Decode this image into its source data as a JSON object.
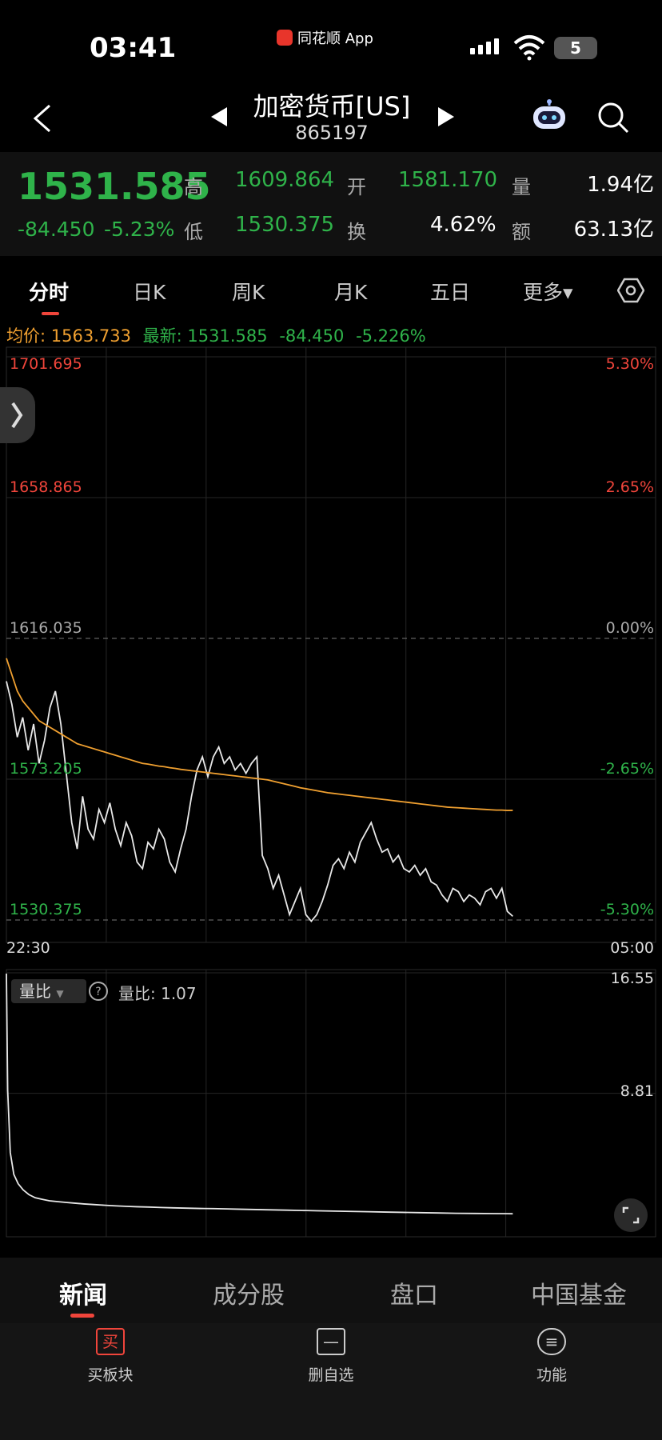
{
  "status_bar": {
    "time": "03:41",
    "app_name": "同花顺 App",
    "battery": "5"
  },
  "header": {
    "title": "加密货币[US]",
    "code": "865197"
  },
  "quote": {
    "price": "1531.585",
    "change": "-84.450",
    "change_pct": "-5.23%",
    "high_label": "高",
    "high": "1609.864",
    "open_label": "开",
    "open": "1581.170",
    "volume_label": "量",
    "volume": "1.94亿",
    "low_label": "低",
    "low": "1530.375",
    "turnover_label": "换",
    "turnover": "4.62%",
    "amount_label": "额",
    "amount": "63.13亿"
  },
  "tabs": [
    "分时",
    "日K",
    "周K",
    "月K",
    "五日",
    "更多▾"
  ],
  "info_line": {
    "avg_label": "均价:",
    "avg_value": "1563.733",
    "latest_label": "最新:",
    "latest_value": "1531.585",
    "latest_change": "-84.450",
    "latest_pct": "-5.226%"
  },
  "chart_data": [
    {
      "type": "line",
      "y_ticks_left": [
        "1701.695",
        "1658.865",
        "1616.035",
        "1573.205",
        "1530.375"
      ],
      "y_ticks_right": [
        "5.30%",
        "2.65%",
        "0.00%",
        "-2.65%",
        "-5.30%"
      ],
      "x_ticks": [
        "22:30",
        "05:00"
      ],
      "ylim": [
        1530.375,
        1701.695
      ],
      "prev_close": 1616.035,
      "series": [
        {
          "color": "#e8e8e8",
          "values": [
            1603,
            1596,
            1586,
            1592,
            1582,
            1590,
            1578,
            1585,
            1595,
            1600,
            1590,
            1575,
            1560,
            1552,
            1568,
            1558,
            1555,
            1564,
            1560,
            1566,
            1558,
            1553,
            1560,
            1556,
            1548,
            1546,
            1554,
            1552,
            1558,
            1555,
            1548,
            1545,
            1552,
            1558,
            1568,
            1576,
            1580,
            1574,
            1580,
            1583,
            1578,
            1580,
            1576,
            1578,
            1575,
            1578,
            1580,
            1550,
            1546,
            1540,
            1544,
            1538,
            1532,
            1536,
            1540,
            1532,
            1530,
            1532,
            1536,
            1541,
            1547,
            1549,
            1546,
            1551,
            1548,
            1554,
            1557,
            1560,
            1555,
            1551,
            1552,
            1548,
            1550,
            1546,
            1545,
            1547,
            1544,
            1546,
            1542,
            1541,
            1538,
            1536,
            1540,
            1539,
            1536,
            1538,
            1537,
            1535,
            1539,
            1540,
            1537,
            1540,
            1533,
            1531.5
          ]
        },
        {
          "color": "#f0a030",
          "values": [
            1610,
            1605,
            1600,
            1597,
            1595,
            1593,
            1591,
            1590,
            1589,
            1588,
            1587,
            1586,
            1585,
            1584,
            1583.5,
            1583,
            1582.5,
            1582,
            1581.5,
            1581,
            1580.5,
            1580,
            1579.5,
            1579,
            1578.5,
            1578,
            1577.8,
            1577.5,
            1577.2,
            1577,
            1576.7,
            1576.5,
            1576.2,
            1576,
            1575.8,
            1575.6,
            1575.4,
            1575.2,
            1575,
            1574.8,
            1574.6,
            1574.4,
            1574.2,
            1574,
            1573.8,
            1573.6,
            1573.4,
            1573.2,
            1573,
            1572.6,
            1572.2,
            1571.8,
            1571.4,
            1571,
            1570.6,
            1570.3,
            1570,
            1569.7,
            1569.4,
            1569.1,
            1568.9,
            1568.7,
            1568.5,
            1568.3,
            1568.1,
            1567.9,
            1567.7,
            1567.5,
            1567.3,
            1567.1,
            1566.9,
            1566.7,
            1566.5,
            1566.3,
            1566.1,
            1565.9,
            1565.7,
            1565.5,
            1565.3,
            1565.1,
            1564.9,
            1564.7,
            1564.6,
            1564.5,
            1564.4,
            1564.3,
            1564.2,
            1564.1,
            1564,
            1563.9,
            1563.8,
            1563.8,
            1563.7,
            1563.733
          ]
        }
      ]
    },
    {
      "type": "line",
      "label": "量比",
      "current_label": "量比: 1.07",
      "y_ticks_right": [
        "16.55",
        "8.81"
      ],
      "ylim": [
        0,
        16.55
      ],
      "series": [
        {
          "color": "#e8e8e8",
          "values": [
            16.5,
            9,
            5,
            3.6,
            3,
            2.6,
            2.3,
            2.1,
            2,
            1.9,
            1.85,
            1.8,
            1.75,
            1.7,
            1.66,
            1.62,
            1.58,
            1.55,
            1.52,
            1.5,
            1.47,
            1.45,
            1.43,
            1.41,
            1.4,
            1.38,
            1.36,
            1.34,
            1.32,
            1.3,
            1.28,
            1.26,
            1.24,
            1.22,
            1.2,
            1.18,
            1.16,
            1.14,
            1.12,
            1.1,
            1.09,
            1.08,
            1.07
          ]
        }
      ]
    }
  ],
  "section_tabs": [
    "新闻",
    "成分股",
    "盘口",
    "中国基金"
  ],
  "actions": [
    {
      "icon": "买",
      "label": "买板块"
    },
    {
      "icon": "—",
      "label": "删自选"
    },
    {
      "icon": "≡",
      "label": "功能"
    }
  ]
}
